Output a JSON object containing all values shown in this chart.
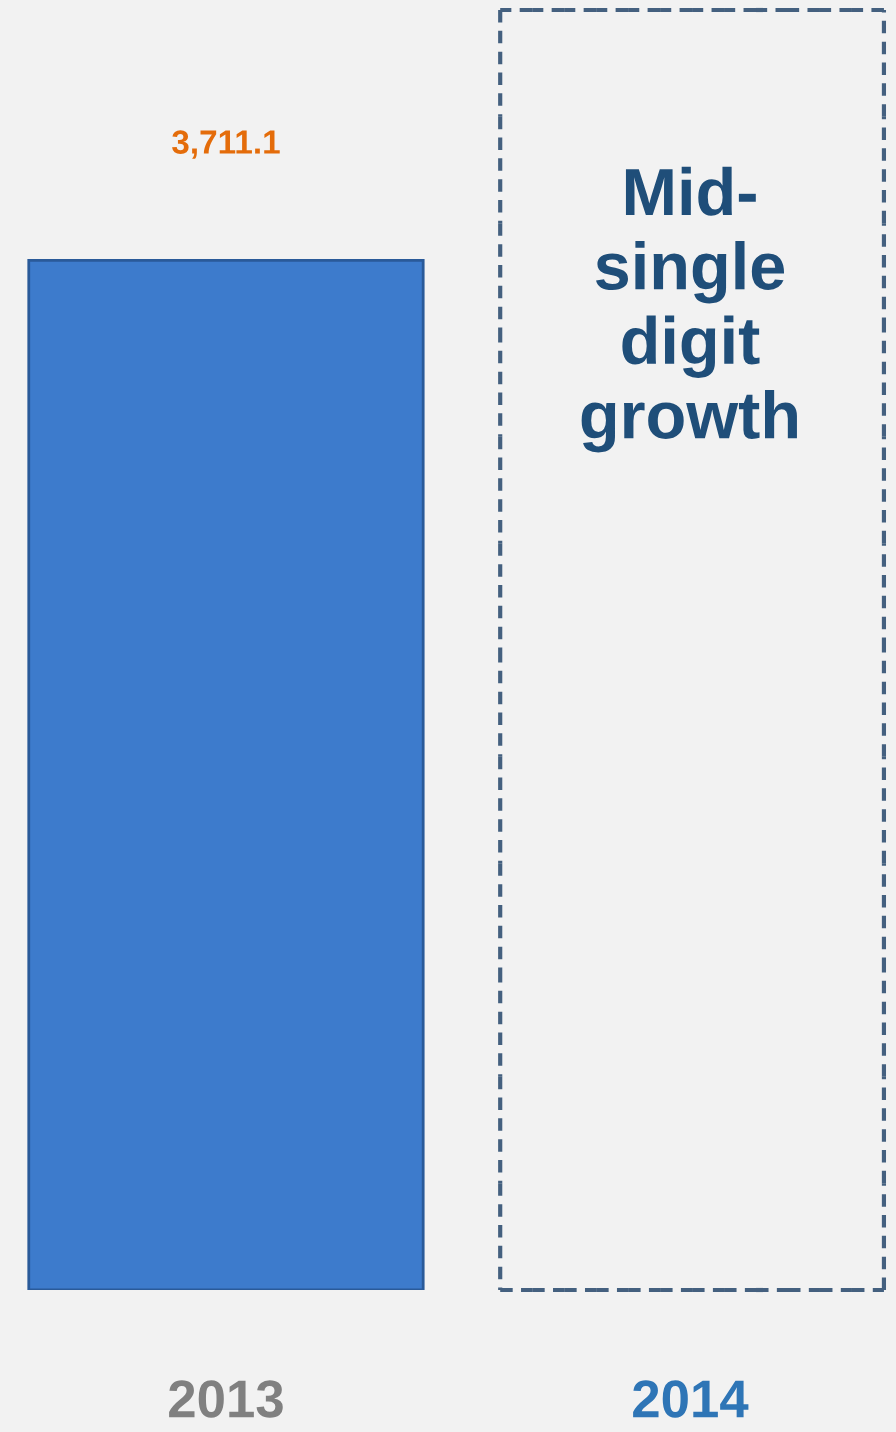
{
  "chart_data": {
    "type": "bar",
    "categories": [
      "2013",
      "2014"
    ],
    "values": [
      3711.1,
      null
    ],
    "ylim": [
      0,
      4650
    ],
    "color": "#3d7bcc",
    "value_labels": [
      "3,711.1",
      null
    ],
    "tick_labels": "x",
    "grid": false,
    "legend": false,
    "annotations": [
      "Mid-single digit growth"
    ]
  }
}
